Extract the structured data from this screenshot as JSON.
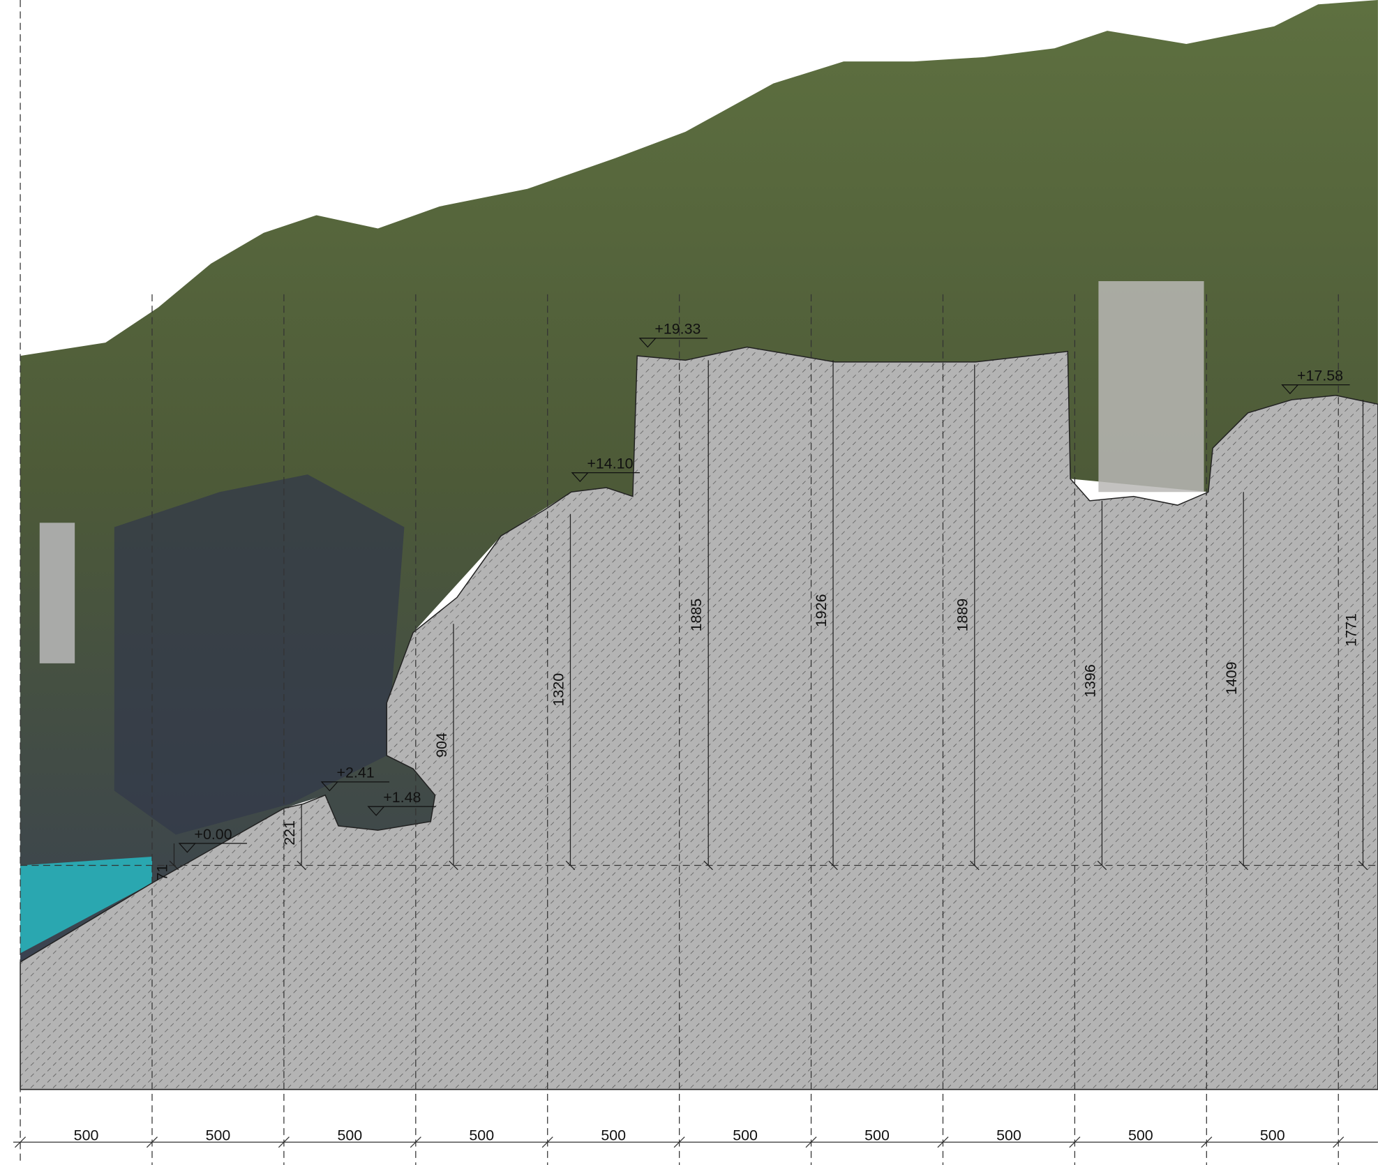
{
  "elevations": [
    "+19.33",
    "+14.10",
    "+17.58",
    "+2.41",
    "+1.48",
    "+0.00"
  ],
  "heights": [
    71,
    221,
    904,
    1320,
    1885,
    1926,
    1889,
    1396,
    1409,
    1771
  ],
  "spacings": [
    500,
    500,
    500,
    500,
    500,
    500,
    500,
    500,
    500,
    500
  ]
}
